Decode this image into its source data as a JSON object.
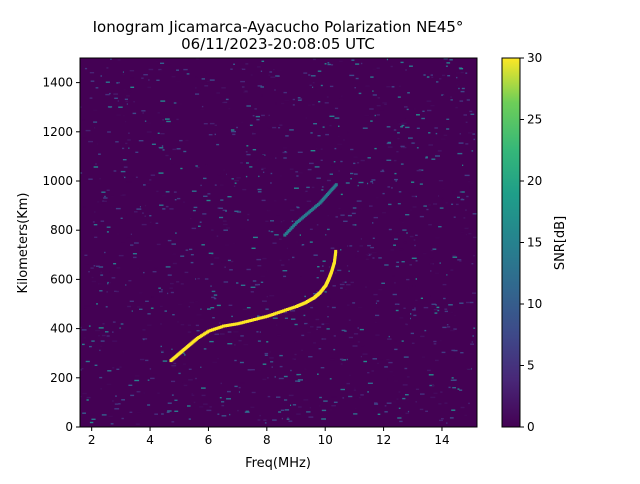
{
  "chart_data": {
    "type": "heatmap",
    "title": "Ionogram Jicamarca-Ayacucho Polarization NE45°",
    "subtitle": "06/11/2023-20:08:05 UTC",
    "xlabel": "Freq(MHz)",
    "ylabel": "Kilometers(Km)",
    "xlim": [
      1.6,
      15.2
    ],
    "ylim": [
      0,
      1500
    ],
    "x_ticks": [
      2,
      4,
      6,
      8,
      10,
      12,
      14
    ],
    "y_ticks": [
      0,
      200,
      400,
      600,
      800,
      1000,
      1200,
      1400
    ],
    "x_tick_labels": [
      "2",
      "4",
      "6",
      "8",
      "10",
      "12",
      "14"
    ],
    "y_tick_labels": [
      "0",
      "200",
      "400",
      "600",
      "800",
      "1000",
      "1200",
      "1400"
    ],
    "colorbar": {
      "label": "SNR[dB]",
      "range": [
        0,
        30
      ],
      "ticks": [
        0,
        5,
        10,
        15,
        20,
        25,
        30
      ],
      "tick_labels": [
        "0",
        "5",
        "10",
        "15",
        "20",
        "25",
        "30"
      ],
      "colormap": "viridis"
    },
    "trace": {
      "name": "",
      "snr": 30,
      "x": [
        4.7,
        5.0,
        5.3,
        5.6,
        6.0,
        6.5,
        7.0,
        7.5,
        8.0,
        8.5,
        9.0,
        9.3,
        9.6,
        9.8,
        10.0,
        10.1,
        10.2,
        10.3,
        10.35
      ],
      "y": [
        270,
        300,
        330,
        360,
        390,
        410,
        420,
        435,
        450,
        470,
        490,
        505,
        525,
        545,
        575,
        600,
        630,
        670,
        720
      ]
    },
    "secondary_trace": {
      "name": "",
      "snr": 14,
      "x": [
        8.6,
        9.0,
        9.4,
        9.8,
        10.1,
        10.4
      ],
      "y": [
        780,
        830,
        870,
        910,
        950,
        990
      ]
    }
  }
}
